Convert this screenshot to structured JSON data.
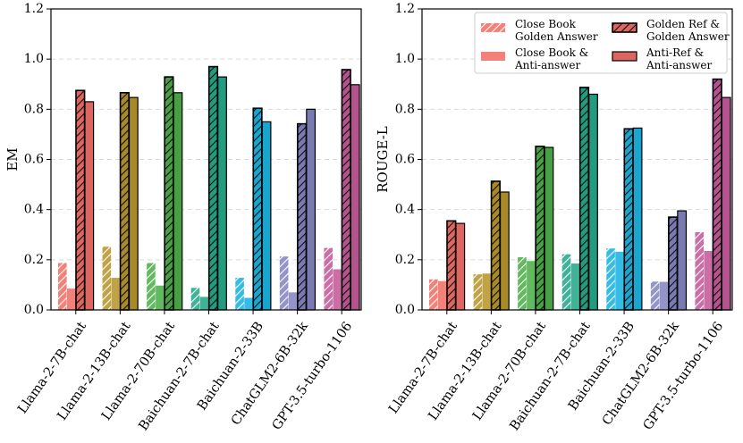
{
  "chart_data": [
    {
      "type": "bar",
      "panel": "left",
      "ylabel": "EM",
      "xlabel": "",
      "ylim": [
        0,
        1.2
      ],
      "yticks": [
        "0.0",
        "0.2",
        "0.4",
        "0.6",
        "0.8",
        "1.0",
        "1.2"
      ],
      "grid": true,
      "categories": [
        "Llama-2-7B-chat",
        "Llama-2-13B-chat",
        "Llama-2-70B-chat",
        "Baichuan-2-7B-chat",
        "Baichuan-2-33B",
        "ChatGLM2-6B-32k",
        "GPT-3.5-turbo-1106"
      ],
      "colors": [
        "#f07068",
        "#b8962e",
        "#4daf4a",
        "#26a88a",
        "#1ab3e0",
        "#8585c2",
        "#c45a9a"
      ],
      "series": [
        {
          "name": "Close Book Golden Answer",
          "style": "hatched-light",
          "values": [
            0.187,
            0.252,
            0.187,
            0.088,
            0.128,
            0.213,
            0.247
          ]
        },
        {
          "name": "Close Book & Anti-answer",
          "style": "solid-light",
          "values": [
            0.085,
            0.128,
            0.097,
            0.052,
            0.048,
            0.07,
            0.162
          ]
        },
        {
          "name": "Golden Ref & Golden Answer",
          "style": "hatched-dark",
          "values": [
            0.875,
            0.866,
            0.929,
            0.97,
            0.804,
            0.742,
            0.958
          ]
        },
        {
          "name": "Anti-Ref & Anti-answer",
          "style": "solid-dark",
          "values": [
            0.83,
            0.847,
            0.866,
            0.929,
            0.75,
            0.8,
            0.898
          ]
        }
      ]
    },
    {
      "type": "bar",
      "panel": "right",
      "ylabel": "ROUGE-L",
      "xlabel": "",
      "ylim": [
        0,
        1.2
      ],
      "yticks": [
        "0.0",
        "0.2",
        "0.4",
        "0.6",
        "0.8",
        "1.0",
        "1.2"
      ],
      "grid": true,
      "legend_position": "top-right",
      "categories": [
        "Llama-2-7B-chat",
        "Llama-2-13B-chat",
        "Llama-2-70B-chat",
        "Baichuan-2-7B-chat",
        "Baichuan-2-33B",
        "ChatGLM2-6B-32k",
        "GPT-3.5-turbo-1106"
      ],
      "colors": [
        "#f07068",
        "#b8962e",
        "#4daf4a",
        "#26a88a",
        "#1ab3e0",
        "#8585c2",
        "#c45a9a"
      ],
      "series": [
        {
          "name": "Close Book Golden Answer",
          "style": "hatched-light",
          "values": [
            0.122,
            0.142,
            0.21,
            0.222,
            0.245,
            0.113,
            0.31
          ]
        },
        {
          "name": "Close Book & Anti-answer",
          "style": "solid-light",
          "values": [
            0.115,
            0.145,
            0.195,
            0.185,
            0.232,
            0.112,
            0.235
          ]
        },
        {
          "name": "Golden Ref & Golden Answer",
          "style": "hatched-dark",
          "values": [
            0.355,
            0.513,
            0.652,
            0.887,
            0.722,
            0.37,
            0.92
          ]
        },
        {
          "name": "Anti-Ref & Anti-answer",
          "style": "solid-dark",
          "values": [
            0.345,
            0.47,
            0.648,
            0.86,
            0.725,
            0.395,
            0.847
          ]
        }
      ]
    }
  ],
  "legend": {
    "items": [
      {
        "line1": "Close Book",
        "line2": "Golden Answer",
        "style": "hatched-light"
      },
      {
        "line1": "Close Book &",
        "line2": "Anti-answer",
        "style": "solid-light"
      },
      {
        "line1": "Golden Ref &",
        "line2": "Golden Answer",
        "style": "hatched-dark"
      },
      {
        "line1": "Anti-Ref &",
        "line2": "Anti-answer",
        "style": "solid-dark"
      }
    ],
    "sample_color": "#f07068"
  }
}
